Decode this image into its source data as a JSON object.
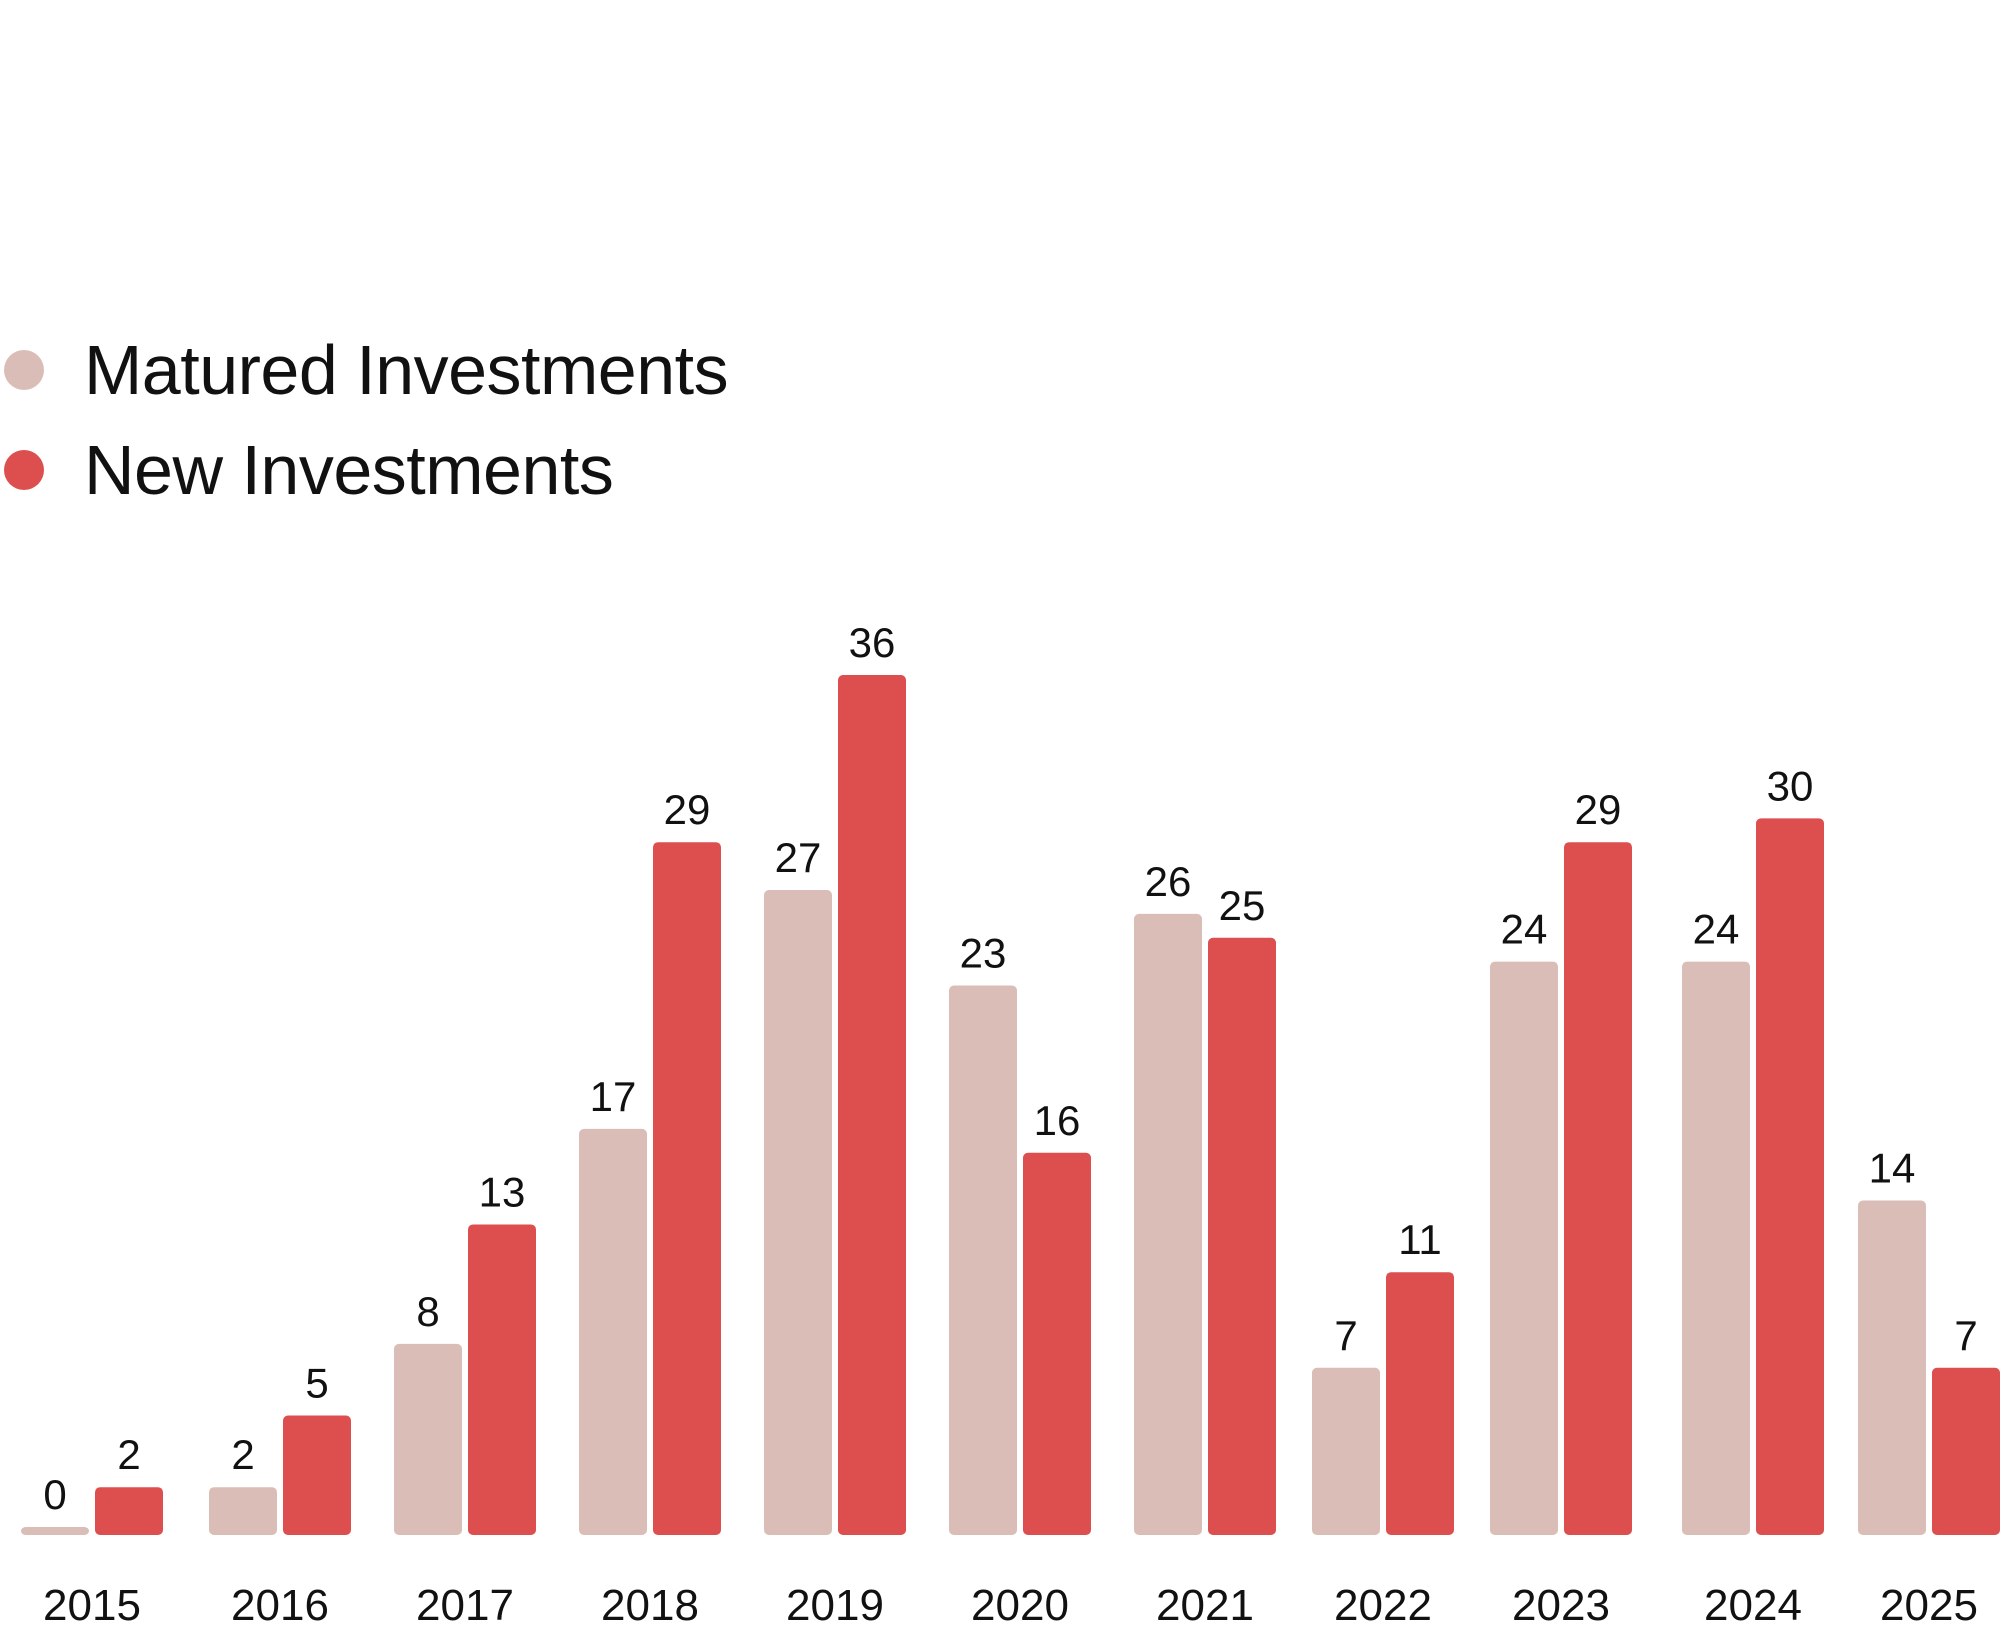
{
  "chart_data": {
    "type": "bar",
    "title": "",
    "xlabel": "",
    "ylabel": "",
    "ylim": [
      0,
      36
    ],
    "grid": false,
    "legend_position": "top-left",
    "categories": [
      "2015",
      "2016",
      "2017",
      "2018",
      "2019",
      "2020",
      "2021",
      "2022",
      "2023",
      "2024",
      "2025"
    ],
    "series": [
      {
        "name": "Matured Investments",
        "color": "#dabdb6",
        "values": [
          0,
          2,
          8,
          17,
          27,
          23,
          26,
          7,
          24,
          24,
          14
        ]
      },
      {
        "name": "New Investments",
        "color": "#dc4f4e",
        "values": [
          2,
          5,
          13,
          29,
          36,
          16,
          25,
          11,
          29,
          30,
          7
        ]
      }
    ]
  }
}
